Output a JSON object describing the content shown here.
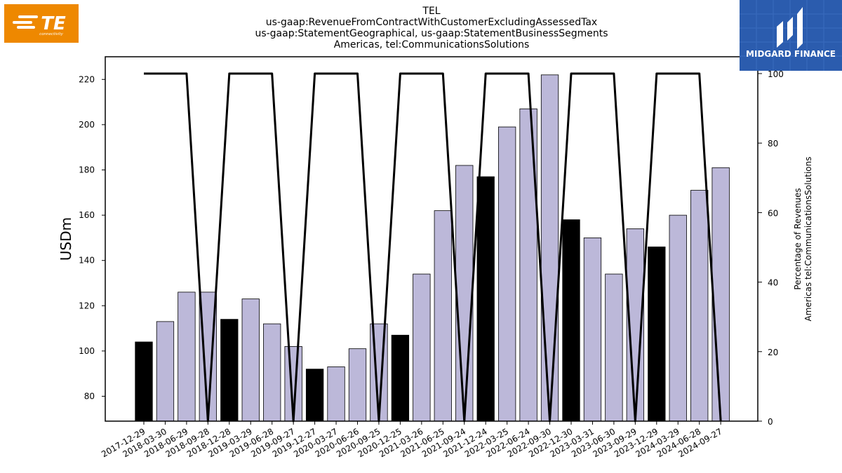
{
  "logos": {
    "left": {
      "text": "TE",
      "subtext": "connectivity",
      "color": "#EE8800",
      "icon": "te-connectivity-logo"
    },
    "right": {
      "text": "MIDGARD FINANCE",
      "color": "#2B5CAE",
      "icon": "midgard-finance-logo"
    }
  },
  "chart_data": {
    "type": "bar",
    "title": [
      "TEL",
      "us-gaap:RevenueFromContractWithCustomerExcludingAssessedTax",
      "us-gaap:StatementGeographical, us-gaap:StatementBusinessSegments",
      "Americas, tel:CommunicationsSolutions"
    ],
    "ylabel": "USDm",
    "y2label": [
      "Percentage of Revenues",
      "Americas tel:CommunicationsSolutions"
    ],
    "ylim": [
      69,
      230
    ],
    "y2lim": [
      0,
      100
    ],
    "yticks": [
      80,
      100,
      120,
      140,
      160,
      180,
      200,
      220
    ],
    "y2ticks": [
      0,
      20,
      40,
      60,
      80,
      100
    ],
    "categories": [
      "2017-12-29",
      "2018-03-30",
      "2018-06-29",
      "2018-09-28",
      "2018-12-28",
      "2019-03-29",
      "2019-06-28",
      "2019-09-27",
      "2019-12-27",
      "2020-03-27",
      "2020-06-26",
      "2020-09-25",
      "2020-12-25",
      "2021-03-26",
      "2021-06-25",
      "2021-09-24",
      "2021-12-24",
      "2022-03-25",
      "2022-06-24",
      "2022-09-30",
      "2022-12-30",
      "2023-03-31",
      "2023-06-30",
      "2023-09-29",
      "2023-12-29",
      "2024-03-29",
      "2024-06-28",
      "2024-09-27"
    ],
    "series": [
      {
        "type": "bar",
        "values": [
          104,
          113,
          126,
          126,
          114,
          123,
          112,
          102,
          92,
          93,
          101,
          112,
          107,
          134,
          162,
          182,
          177,
          199,
          207,
          222,
          158,
          150,
          134,
          154,
          146,
          160,
          171,
          181
        ],
        "highlight": [
          true,
          false,
          false,
          false,
          true,
          false,
          false,
          false,
          true,
          false,
          false,
          false,
          true,
          false,
          false,
          false,
          true,
          false,
          false,
          false,
          true,
          false,
          false,
          false,
          true,
          false,
          false,
          false
        ],
        "color": "#BCB8D9",
        "highlight_color": "#000000"
      },
      {
        "type": "line",
        "axis": "right",
        "values": [
          100,
          100,
          100,
          0,
          100,
          100,
          100,
          0,
          100,
          100,
          100,
          0,
          100,
          100,
          100,
          0,
          100,
          100,
          100,
          0,
          100,
          100,
          100,
          0,
          100,
          100,
          100,
          0
        ],
        "color": "#000000"
      }
    ]
  }
}
